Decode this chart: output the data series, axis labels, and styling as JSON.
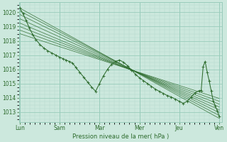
{
  "bg_color": "#cce8dd",
  "plot_bg_color": "#cce8dd",
  "grid_major_color": "#99ccbb",
  "grid_minor_color": "#b3d9cc",
  "line_color": "#2d6b2d",
  "ylim": [
    1012.3,
    1020.7
  ],
  "yticks": [
    1013,
    1014,
    1015,
    1016,
    1017,
    1018,
    1019,
    1020
  ],
  "xlabel": "Pression niveau de la mer( hPa )",
  "x_day_labels": [
    "Lun",
    "Sam",
    "Mar",
    "Mer",
    "Jeu",
    "Ven"
  ],
  "xlim": [
    -0.02,
    5.08
  ],
  "ensemble_lines": [
    {
      "x0": 0.0,
      "y0": 1020.3,
      "x1": 5.0,
      "y1": 1012.55
    },
    {
      "x0": 0.0,
      "y0": 1020.1,
      "x1": 5.0,
      "y1": 1012.75
    },
    {
      "x0": 0.0,
      "y0": 1019.85,
      "x1": 5.0,
      "y1": 1012.95
    },
    {
      "x0": 0.0,
      "y0": 1019.55,
      "x1": 5.0,
      "y1": 1013.15
    },
    {
      "x0": 0.0,
      "y0": 1019.25,
      "x1": 5.0,
      "y1": 1013.35
    },
    {
      "x0": 0.0,
      "y0": 1019.0,
      "x1": 5.0,
      "y1": 1013.55
    },
    {
      "x0": 0.0,
      "y0": 1018.75,
      "x1": 5.0,
      "y1": 1013.75
    },
    {
      "x0": 0.0,
      "y0": 1018.5,
      "x1": 5.0,
      "y1": 1013.95
    }
  ],
  "main_x": [
    0.0,
    0.08,
    0.16,
    0.24,
    0.32,
    0.4,
    0.5,
    0.6,
    0.7,
    0.8,
    0.9,
    1.0,
    1.08,
    1.16,
    1.24,
    1.32,
    1.4,
    1.5,
    1.6,
    1.7,
    1.8,
    1.9,
    2.0,
    2.1,
    2.2,
    2.3,
    2.4,
    2.5,
    2.6,
    2.7,
    2.8,
    2.9,
    3.0,
    3.1,
    3.2,
    3.3,
    3.4,
    3.5,
    3.6,
    3.7,
    3.8,
    3.9,
    4.0,
    4.1,
    4.2,
    4.3,
    4.4,
    4.5,
    4.55,
    4.6,
    4.65,
    4.7,
    4.75,
    4.8,
    4.85,
    4.9,
    4.95,
    5.0
  ],
  "main_y": [
    1020.3,
    1019.9,
    1019.4,
    1018.9,
    1018.45,
    1018.1,
    1017.75,
    1017.5,
    1017.3,
    1017.15,
    1017.0,
    1016.85,
    1016.75,
    1016.65,
    1016.55,
    1016.45,
    1016.15,
    1015.8,
    1015.45,
    1015.1,
    1014.75,
    1014.45,
    1015.0,
    1015.55,
    1016.0,
    1016.35,
    1016.55,
    1016.65,
    1016.5,
    1016.25,
    1015.95,
    1015.65,
    1015.4,
    1015.2,
    1015.0,
    1014.8,
    1014.6,
    1014.45,
    1014.3,
    1014.15,
    1014.05,
    1013.9,
    1013.75,
    1013.6,
    1013.75,
    1014.05,
    1014.35,
    1014.5,
    1014.5,
    1016.2,
    1016.55,
    1015.8,
    1015.2,
    1014.5,
    1013.8,
    1013.45,
    1013.1,
    1012.7
  ]
}
